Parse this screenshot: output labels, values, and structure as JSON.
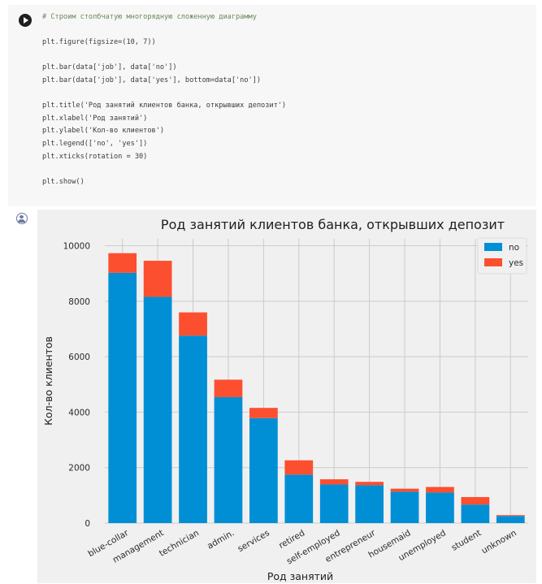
{
  "code_cell": {
    "lines": [
      "# Строим столбчатую многорядную сложенную диаграмму",
      "",
      "plt.figure(figsize=(10, 7))",
      "",
      "plt.bar(data['job'], data['no'])",
      "plt.bar(data['job'], data['yes'], bottom=data['no'])",
      "",
      "plt.title('Род занятий клиентов банка, открывших депозит')",
      "plt.xlabel('Род занятий')",
      "plt.ylabel('Кол-во клиентов')",
      "plt.legend(['no', 'yes'])",
      "plt.xticks(rotation = 30)",
      "",
      "plt.show()"
    ]
  },
  "colors": {
    "no": "#008fd5",
    "yes": "#fc4f30",
    "plot_bg": "#f0f0f0",
    "grid": "#cbcbcb"
  },
  "chart_data": {
    "type": "bar",
    "stacked": true,
    "title": "Род занятий клиентов банка, открывших депозит",
    "xlabel": "Род занятий",
    "ylabel": "Кол-во клиентов",
    "categories": [
      "blue-collar",
      "management",
      "technician",
      "admin.",
      "services",
      "retired",
      "self-employed",
      "entrepreneur",
      "housemaid",
      "unemployed",
      "student",
      "unknown"
    ],
    "series": [
      {
        "name": "no",
        "values": [
          9024,
          8157,
          6757,
          4540,
          3785,
          1748,
          1392,
          1364,
          1131,
          1101,
          669,
          254
        ]
      },
      {
        "name": "yes",
        "values": [
          708,
          1301,
          840,
          631,
          369,
          516,
          187,
          123,
          109,
          202,
          269,
          34
        ]
      }
    ],
    "yticks": [
      0,
      2000,
      4000,
      6000,
      8000,
      10000
    ],
    "ylim": [
      0,
      10250
    ],
    "legend": [
      "no",
      "yes"
    ],
    "legend_position": "top-right",
    "xtick_rotation": 30,
    "grid": true
  }
}
